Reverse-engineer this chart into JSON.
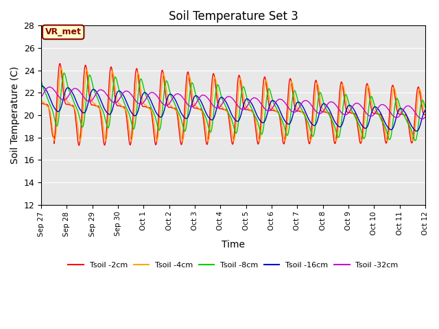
{
  "title": "Soil Temperature Set 3",
  "xlabel": "Time",
  "ylabel": "Soil Temperature (C)",
  "ylim": [
    12,
    28
  ],
  "yticks": [
    12,
    14,
    16,
    18,
    20,
    22,
    24,
    26,
    28
  ],
  "annotation": "VR_met",
  "background_color": "#e8e8e8",
  "colors": {
    "Tsoil -2cm": "#ff0000",
    "Tsoil -4cm": "#ffa500",
    "Tsoil -8cm": "#00cc00",
    "Tsoil -16cm": "#0000cc",
    "Tsoil -32cm": "#cc00cc"
  },
  "num_points": 3000,
  "total_days": 15
}
